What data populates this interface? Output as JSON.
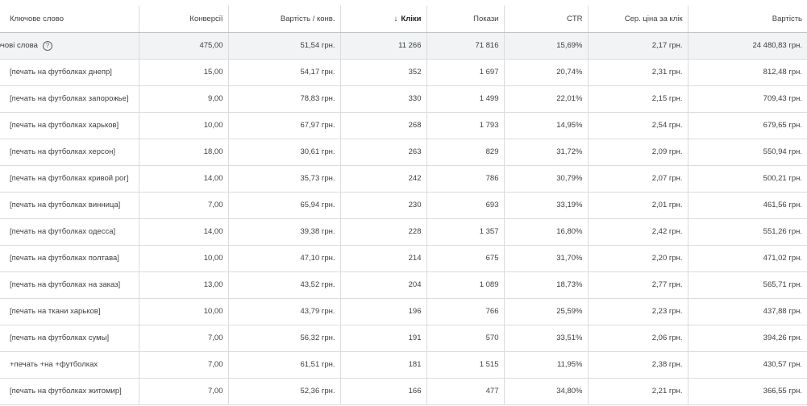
{
  "columns": {
    "keyword": "Ключове слово",
    "conversions": "Конверсії",
    "cost_per_conv": "Вартість / конв.",
    "clicks": "Кліки",
    "impressions": "Покази",
    "ctr": "CTR",
    "avg_cpc": "Сер. ціна за клік",
    "cost": "Вартість"
  },
  "sort": {
    "column": "clicks",
    "direction_icon": "arrow-down-icon",
    "glyph": "↓"
  },
  "total": {
    "label": "ючові слова",
    "help_glyph": "?",
    "conversions": "475,00",
    "cost_per_conv": "51,54 грн.",
    "clicks": "11 266",
    "impressions": "71 816",
    "ctr": "15,69%",
    "avg_cpc": "2,17 грн.",
    "cost": "24 480,83 грн."
  },
  "rows": [
    {
      "keyword": "[печать на футболках днепр]",
      "conversions": "15,00",
      "cost_per_conv": "54,17 грн.",
      "clicks": "352",
      "impressions": "1 697",
      "ctr": "20,74%",
      "avg_cpc": "2,31 грн.",
      "cost": "812,48 грн."
    },
    {
      "keyword": "[печать на футболках запорожье]",
      "conversions": "9,00",
      "cost_per_conv": "78,83 грн.",
      "clicks": "330",
      "impressions": "1 499",
      "ctr": "22,01%",
      "avg_cpc": "2,15 грн.",
      "cost": "709,43 грн."
    },
    {
      "keyword": "[печать на футболках харьков]",
      "conversions": "10,00",
      "cost_per_conv": "67,97 грн.",
      "clicks": "268",
      "impressions": "1 793",
      "ctr": "14,95%",
      "avg_cpc": "2,54 грн.",
      "cost": "679,65 грн."
    },
    {
      "keyword": "[печать на футболках херсон]",
      "conversions": "18,00",
      "cost_per_conv": "30,61 грн.",
      "clicks": "263",
      "impressions": "829",
      "ctr": "31,72%",
      "avg_cpc": "2,09 грн.",
      "cost": "550,94 грн."
    },
    {
      "keyword": "[печать на футболках кривой рог]",
      "conversions": "14,00",
      "cost_per_conv": "35,73 грн.",
      "clicks": "242",
      "impressions": "786",
      "ctr": "30,79%",
      "avg_cpc": "2,07 грн.",
      "cost": "500,21 грн."
    },
    {
      "keyword": "[печать на футболках винница]",
      "conversions": "7,00",
      "cost_per_conv": "65,94 грн.",
      "clicks": "230",
      "impressions": "693",
      "ctr": "33,19%",
      "avg_cpc": "2,01 грн.",
      "cost": "461,56 грн."
    },
    {
      "keyword": "[печать на футболках одесса]",
      "conversions": "14,00",
      "cost_per_conv": "39,38 грн.",
      "clicks": "228",
      "impressions": "1 357",
      "ctr": "16,80%",
      "avg_cpc": "2,42 грн.",
      "cost": "551,26 грн."
    },
    {
      "keyword": "[печать на футболках полтава]",
      "conversions": "10,00",
      "cost_per_conv": "47,10 грн.",
      "clicks": "214",
      "impressions": "675",
      "ctr": "31,70%",
      "avg_cpc": "2,20 грн.",
      "cost": "471,02 грн."
    },
    {
      "keyword": "[печать на футболках на заказ]",
      "conversions": "13,00",
      "cost_per_conv": "43,52 грн.",
      "clicks": "204",
      "impressions": "1 089",
      "ctr": "18,73%",
      "avg_cpc": "2,77 грн.",
      "cost": "565,71 грн."
    },
    {
      "keyword": "[печать на ткани харьков]",
      "conversions": "10,00",
      "cost_per_conv": "43,79 грн.",
      "clicks": "196",
      "impressions": "766",
      "ctr": "25,59%",
      "avg_cpc": "2,23 грн.",
      "cost": "437,88 грн."
    },
    {
      "keyword": "[печать на футболках сумы]",
      "conversions": "7,00",
      "cost_per_conv": "56,32 грн.",
      "clicks": "191",
      "impressions": "570",
      "ctr": "33,51%",
      "avg_cpc": "2,06 грн.",
      "cost": "394,26 грн."
    },
    {
      "keyword": "+печать +на +футболках",
      "conversions": "7,00",
      "cost_per_conv": "61,51 грн.",
      "clicks": "181",
      "impressions": "1 515",
      "ctr": "11,95%",
      "avg_cpc": "2,38 грн.",
      "cost": "430,57 грн."
    },
    {
      "keyword": "[печать на футболках житомир]",
      "conversions": "7,00",
      "cost_per_conv": "52,36 грн.",
      "clicks": "166",
      "impressions": "477",
      "ctr": "34,80%",
      "avg_cpc": "2,21 грн.",
      "cost": "366,55 грн."
    }
  ]
}
